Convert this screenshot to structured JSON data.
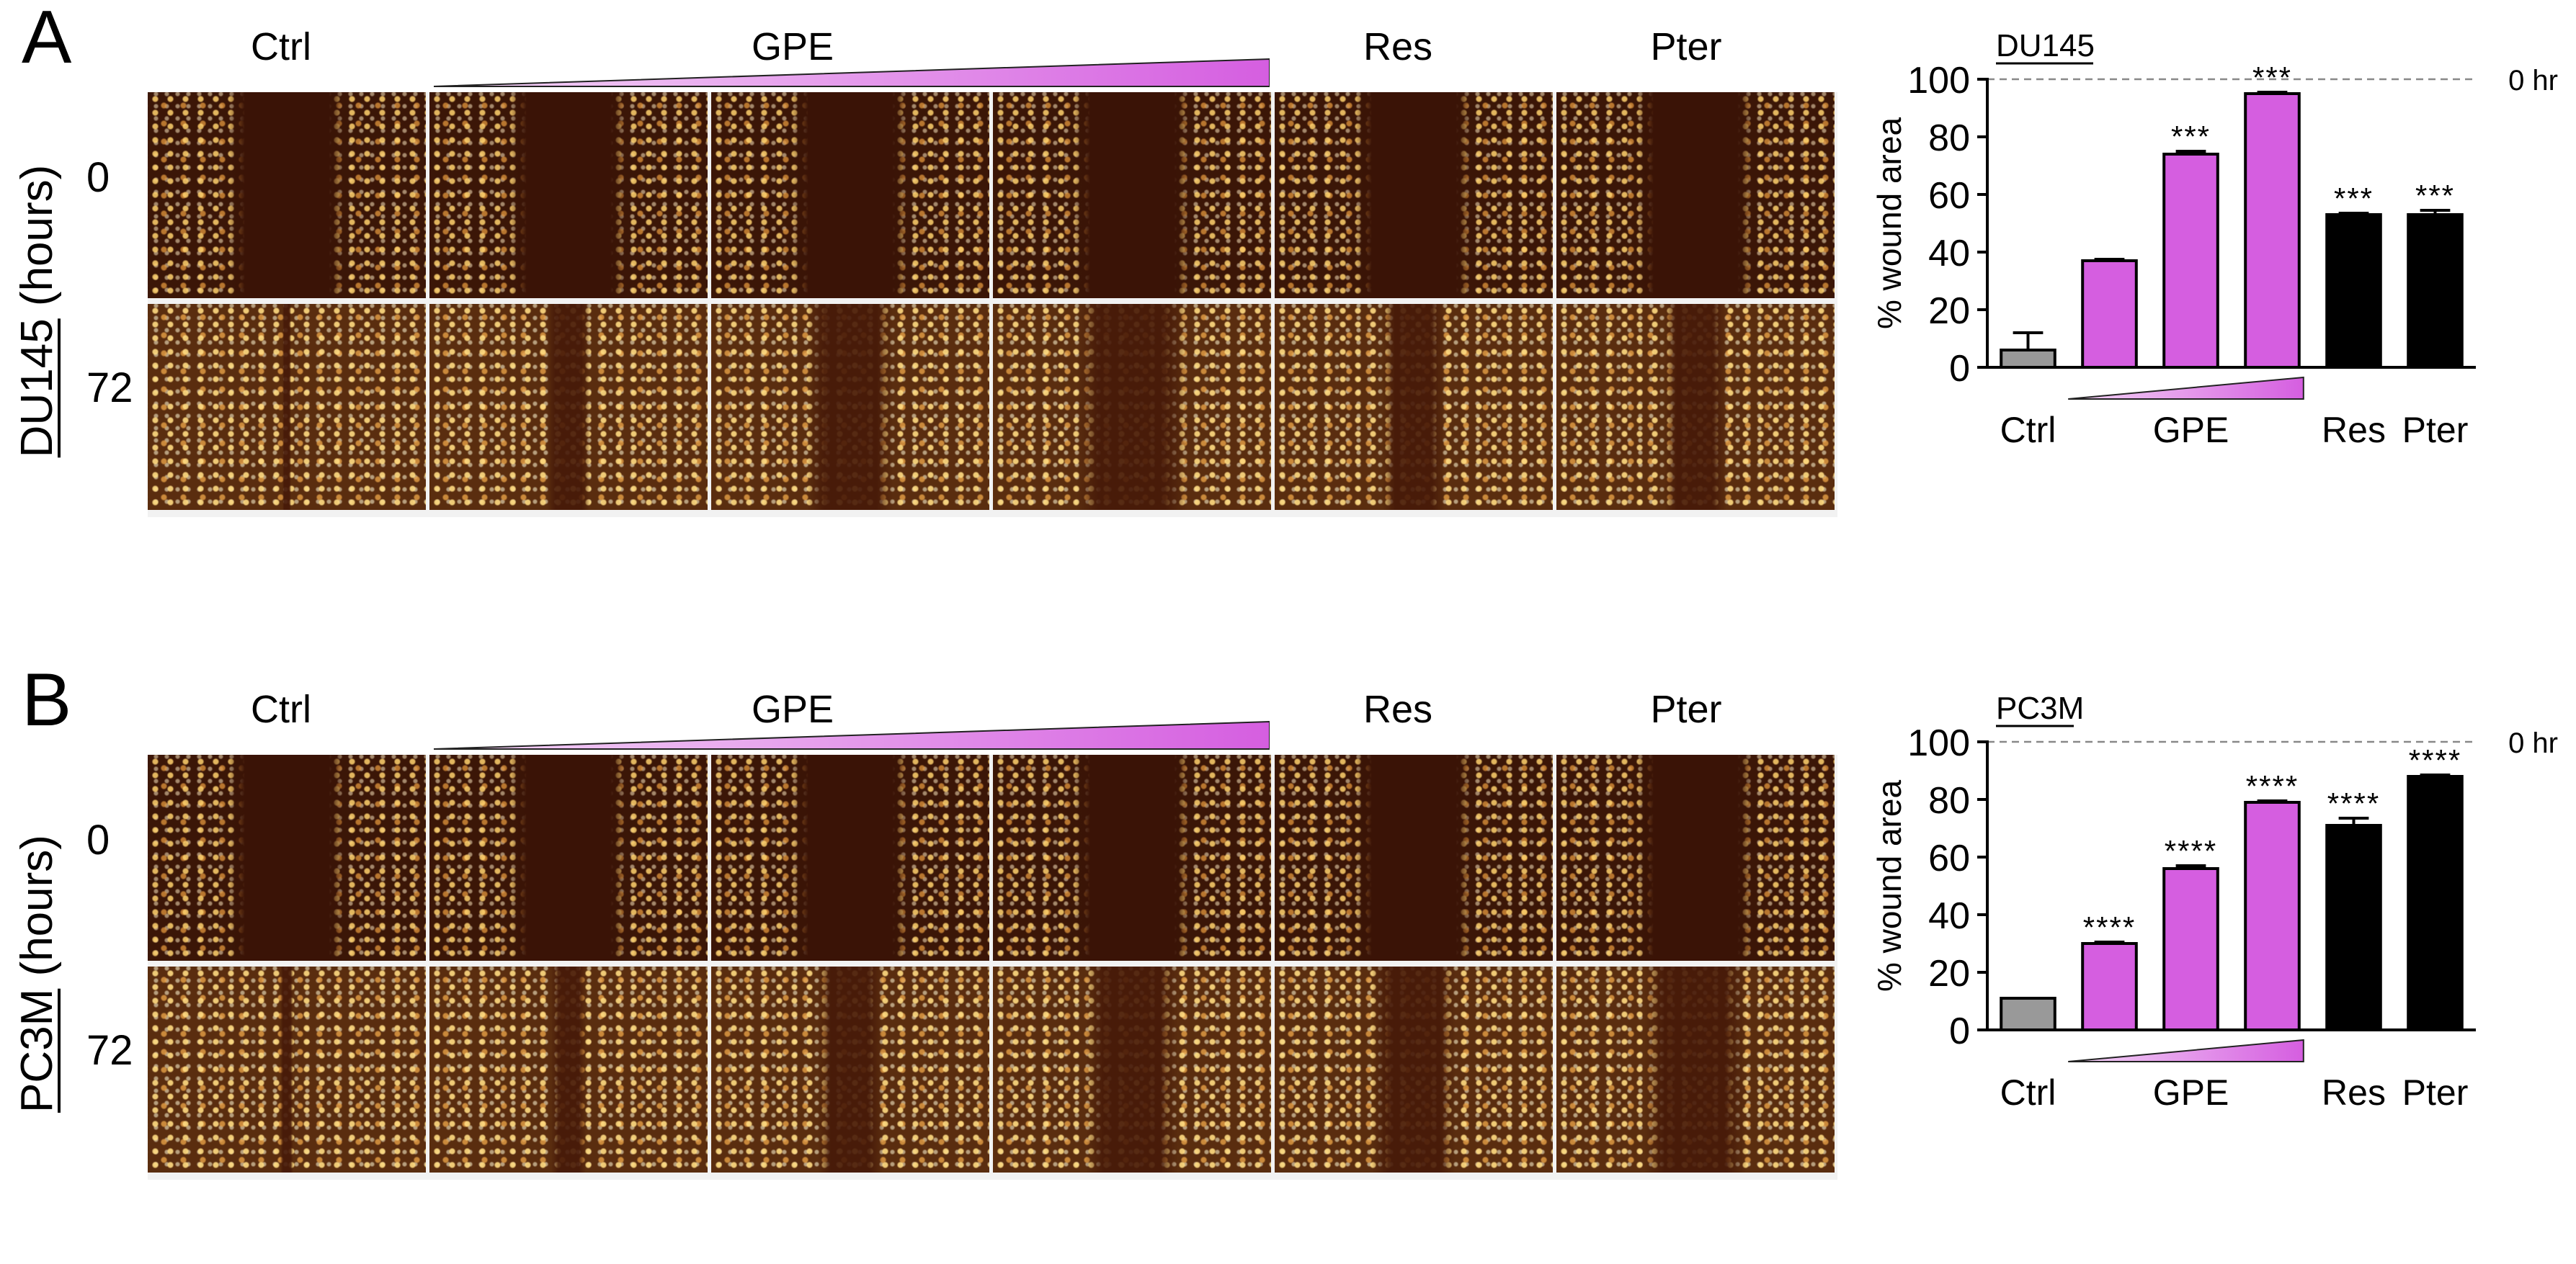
{
  "figure": {
    "panels": [
      {
        "letter": "A",
        "cell_line": "DU145",
        "time_unit": "(hours)",
        "time_points": [
          "0",
          "72"
        ],
        "columns": [
          "Ctrl",
          "GPE",
          "Res",
          "Pter"
        ],
        "gradient_color": "#d55ee0",
        "image_tiles": 6,
        "wound_remaining": [
          [
            1,
            1,
            1,
            1,
            1,
            1
          ],
          [
            0.06,
            0.37,
            0.74,
            0.95,
            0.53,
            0.53
          ]
        ]
      },
      {
        "letter": "B",
        "cell_line": "PC3M",
        "time_unit": "(hours)",
        "time_points": [
          "0",
          "72"
        ],
        "columns": [
          "Ctrl",
          "GPE",
          "Res",
          "Pter"
        ],
        "gradient_color": "#d55ee0",
        "image_tiles": 6,
        "wound_remaining": [
          [
            1,
            1,
            1,
            1,
            1,
            1
          ],
          [
            0.11,
            0.3,
            0.56,
            0.79,
            0.71,
            0.88
          ]
        ]
      }
    ]
  },
  "chart_data": [
    {
      "type": "bar",
      "title": "DU145",
      "xlabel": "",
      "ylabel": "% wound area",
      "ylim": [
        0,
        100
      ],
      "yticks": [
        0,
        20,
        40,
        60,
        80,
        100
      ],
      "categories": [
        "Ctrl",
        "GPE",
        "GPE",
        "GPE",
        "Res",
        "Pter"
      ],
      "x_group_labels": [
        "Ctrl",
        "GPE",
        "Res",
        "Pter"
      ],
      "values": [
        6,
        37,
        74,
        95,
        53,
        53
      ],
      "errors": [
        6,
        0.5,
        1,
        0.5,
        0.5,
        1.5
      ],
      "significance": [
        "",
        "",
        "***",
        "***",
        "***",
        "***"
      ],
      "bar_colors": [
        "#999999",
        "#d55ee0",
        "#d55ee0",
        "#d55ee0",
        "#000000",
        "#000000"
      ],
      "reference_line": {
        "y": 100,
        "label": "0 hr",
        "style": "dashed"
      },
      "gradient_color": "#d55ee0",
      "grid": false,
      "legend": "none"
    },
    {
      "type": "bar",
      "title": "PC3M",
      "xlabel": "",
      "ylabel": "% wound area",
      "ylim": [
        0,
        100
      ],
      "yticks": [
        0,
        20,
        40,
        60,
        80,
        100
      ],
      "categories": [
        "Ctrl",
        "GPE",
        "GPE",
        "GPE",
        "Res",
        "Pter"
      ],
      "x_group_labels": [
        "Ctrl",
        "GPE",
        "Res",
        "Pter"
      ],
      "values": [
        11,
        30,
        56,
        79,
        71,
        88
      ],
      "errors": [
        0,
        0.5,
        1,
        0.5,
        2.5,
        0.5
      ],
      "significance": [
        "",
        "****",
        "****",
        "****",
        "****",
        "****"
      ],
      "bar_colors": [
        "#999999",
        "#d55ee0",
        "#d55ee0",
        "#d55ee0",
        "#000000",
        "#000000"
      ],
      "reference_line": {
        "y": 100,
        "label": "0 hr",
        "style": "dashed"
      },
      "gradient_color": "#d55ee0",
      "grid": false,
      "legend": "none"
    }
  ]
}
